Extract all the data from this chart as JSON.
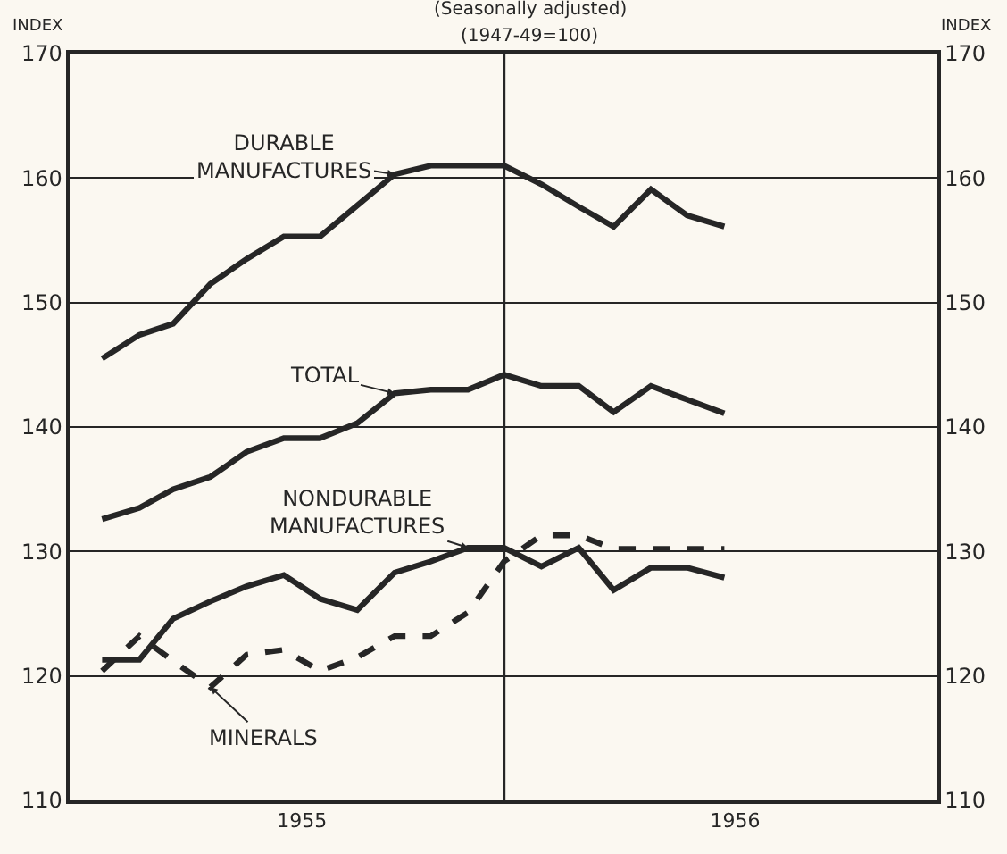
{
  "chart_data": {
    "type": "line",
    "title": "(Seasonally adjusted)",
    "subtitle": "(1947-49=100)",
    "ylabel": "INDEX",
    "y2label": "INDEX",
    "x": [
      "1955-01",
      "1955-02",
      "1955-03",
      "1955-04",
      "1955-05",
      "1955-06",
      "1955-07",
      "1955-08",
      "1955-09",
      "1955-10",
      "1955-11",
      "1955-12",
      "1956-01",
      "1956-02",
      "1956-03",
      "1956-04",
      "1956-05",
      "1956-06"
    ],
    "series": [
      {
        "color": "#262626",
        "line_style": "solid",
        "values": [
          145.5,
          147.4,
          148.3,
          151.5,
          153.5,
          155.3,
          155.3,
          157.8,
          160.3,
          161,
          161,
          161,
          159.5,
          157.7,
          156.1,
          159.1,
          157,
          156.1
        ]
      },
      {
        "color": "#262626",
        "line_style": "solid",
        "values": [
          132.6,
          133.5,
          135,
          136,
          138,
          139.1,
          139.1,
          140.3,
          142.7,
          143,
          143,
          144.2,
          143.3,
          143.3,
          141.2,
          143.3,
          142.2,
          141.1
        ]
      },
      {
        "color": "#262626",
        "line_style": "solid",
        "values": [
          121.3,
          121.3,
          124.6,
          126,
          127.2,
          128.1,
          126.2,
          125.3,
          128.3,
          129.2,
          130.3,
          130.3,
          128.8,
          130.3,
          126.9,
          128.7,
          128.7,
          127.9
        ]
      },
      {
        "color": "#262626",
        "line_style": "dashed",
        "values": [
          120.4,
          123.2,
          121.2,
          119.1,
          121.7,
          122.1,
          120.4,
          121.5,
          123.2,
          123.2,
          125.1,
          129.2,
          131.3,
          131.3,
          130.2,
          130.2,
          130.2,
          130.2
        ]
      }
    ],
    "annotations": [
      {
        "text": "DURABLE\nMANUFACTURES",
        "x": "1955-09",
        "y": 160.3
      },
      {
        "text": "TOTAL",
        "x": "1955-09",
        "y": 142.7
      },
      {
        "text": "NONDURABLE\nMANUFACTURES",
        "x": "1955-11",
        "y": 130.3
      },
      {
        "text": "MINERALS",
        "x": "1955-04",
        "y": 119.1
      }
    ],
    "ref_lines": [
      {
        "axis": "x",
        "value": "1955-12",
        "color": "#262626"
      }
    ],
    "xlim": [
      "1954-12-05",
      "1956-11-25"
    ],
    "xticks": [
      {
        "value": "1955-06-16",
        "label": "1955"
      },
      {
        "value": "1956-06-10",
        "label": "1956"
      }
    ],
    "ylim": [
      110,
      170
    ],
    "yticks": [
      110,
      120,
      130,
      140,
      150,
      160,
      170
    ],
    "y2lim": [
      110,
      170
    ],
    "y2ticks": [
      110,
      120,
      130,
      140,
      150,
      160,
      170
    ],
    "grid": "y",
    "marker": "none"
  }
}
